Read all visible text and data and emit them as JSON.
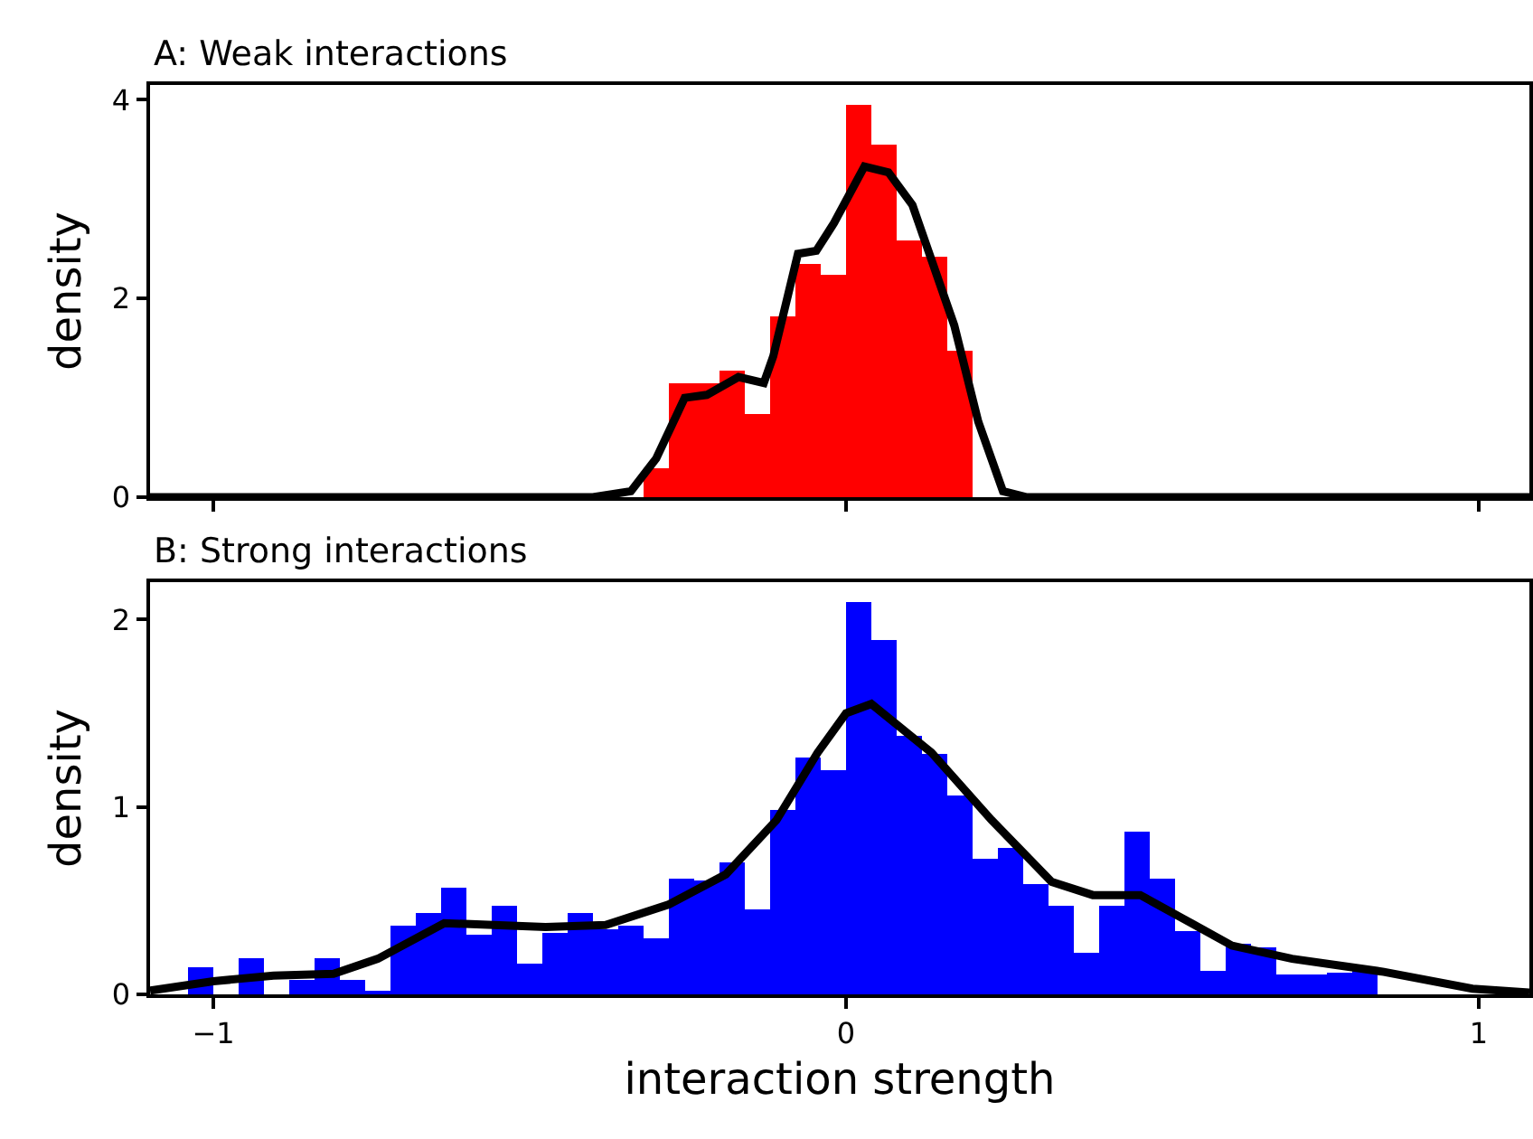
{
  "chart_data": [
    {
      "type": "histogram",
      "title": "A: Weak interactions",
      "ylabel": "density",
      "xlim": [
        -1.1,
        1.08
      ],
      "xticks": [
        -1,
        0,
        1
      ],
      "ylim": [
        0,
        4.15
      ],
      "yticks": [
        0,
        2,
        4
      ],
      "tick_labels": "y",
      "grid": false,
      "series": [
        {
          "color": "#ff0000",
          "bins": [
            -0.32,
            -0.28,
            -0.24,
            -0.2,
            -0.16,
            -0.12,
            -0.08,
            -0.04,
            0,
            0.04,
            0.08,
            0.12,
            0.16,
            0.2
          ],
          "values": [
            0.29,
            1.14,
            1.14,
            1.28,
            0.84,
            1.82,
            2.35,
            2.24,
            3.95,
            3.55,
            2.59,
            2.42,
            1.47
          ]
        },
        {
          "type": "line",
          "color": "#000000",
          "x": [
            -1.1,
            -0.4,
            -0.34,
            -0.3,
            -0.255,
            -0.22,
            -0.17,
            -0.13,
            -0.115,
            -0.076,
            -0.047,
            -0.019,
            0.029,
            0.067,
            0.105,
            0.171,
            0.209,
            0.248,
            0.286,
            1.08
          ],
          "values": [
            0,
            0,
            0.06,
            0.39,
            1.0,
            1.03,
            1.21,
            1.15,
            1.42,
            2.45,
            2.48,
            2.76,
            3.33,
            3.27,
            2.94,
            1.73,
            0.76,
            0.06,
            0,
            0
          ]
        }
      ]
    },
    {
      "type": "histogram",
      "title": "B: Strong interactions",
      "xlabel": "interaction strength",
      "ylabel": "density",
      "xlim": [
        -1.1,
        1.08
      ],
      "xticks": [
        -1,
        0,
        1
      ],
      "ylim": [
        0,
        2.2
      ],
      "yticks": [
        0,
        1,
        2
      ],
      "grid": false,
      "series": [
        {
          "color": "#0000ff",
          "bins": [
            -1.04,
            -1,
            -0.96,
            -0.92,
            -0.88,
            -0.84,
            -0.8,
            -0.76,
            -0.72,
            -0.68,
            -0.64,
            -0.6,
            -0.56,
            -0.52,
            -0.48,
            -0.44,
            -0.4,
            -0.36,
            -0.32,
            -0.28,
            -0.24,
            -0.2,
            -0.16,
            -0.12,
            -0.08,
            -0.04,
            0,
            0.04,
            0.08,
            0.12,
            0.16,
            0.2,
            0.24,
            0.28,
            0.32,
            0.36,
            0.4,
            0.44,
            0.48,
            0.52,
            0.56,
            0.6,
            0.64,
            0.68,
            0.72,
            0.76,
            0.8,
            0.84
          ],
          "values": [
            0.14,
            0,
            0.19,
            0,
            0.08,
            0.19,
            0.08,
            0.01,
            0.37,
            0.43,
            0.57,
            0.32,
            0.47,
            0.16,
            0.33,
            0.43,
            0.35,
            0.37,
            0.3,
            0.62,
            0.61,
            0.7,
            0.45,
            0.98,
            1.26,
            1.2,
            2.09,
            1.89,
            1.38,
            1.28,
            1.06,
            0.72,
            0.78,
            0.59,
            0.47,
            0.22,
            0.47,
            0.87,
            0.62,
            0.34,
            0.13,
            0.27,
            0.25,
            0.11,
            0.11,
            0.12,
            0.13
          ]
        },
        {
          "type": "line",
          "color": "#000000",
          "x": [
            -1.1,
            -1.0,
            -0.905,
            -0.81,
            -0.74,
            -0.635,
            -0.475,
            -0.38,
            -0.28,
            -0.19,
            -0.11,
            -0.045,
            0.0,
            0.04,
            0.135,
            0.23,
            0.325,
            0.39,
            0.465,
            0.535,
            0.61,
            0.705,
            0.85,
            0.99,
            1.08
          ],
          "values": [
            0.02,
            0.07,
            0.1,
            0.11,
            0.19,
            0.38,
            0.36,
            0.37,
            0.48,
            0.64,
            0.93,
            1.29,
            1.5,
            1.55,
            1.29,
            0.93,
            0.6,
            0.53,
            0.53,
            0.4,
            0.26,
            0.19,
            0.12,
            0.03,
            0.01
          ]
        }
      ]
    }
  ]
}
